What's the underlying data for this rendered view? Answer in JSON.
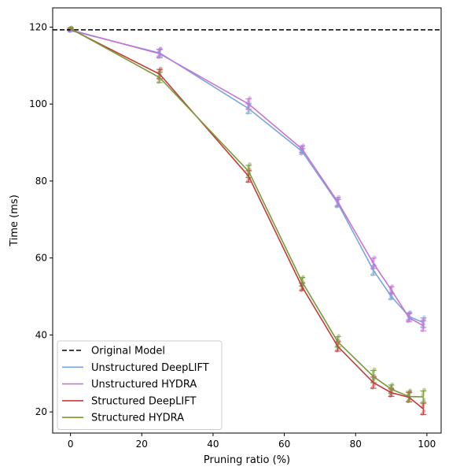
{
  "chart_data": {
    "type": "line",
    "title": "",
    "xlabel": "Pruning ratio (%)",
    "ylabel": "Time (ms)",
    "xlim": [
      -5,
      104
    ],
    "ylim": [
      14.5,
      125
    ],
    "xticks": [
      0,
      20,
      40,
      60,
      80,
      100
    ],
    "yticks": [
      20,
      40,
      60,
      80,
      100,
      120
    ],
    "grid": false,
    "legend_position": "lower-left",
    "reference_line": {
      "name": "Original Model",
      "value": 119.3,
      "color": "#000000",
      "style": "dashed"
    },
    "x": [
      0,
      25,
      50,
      65,
      75,
      85,
      90,
      95,
      99
    ],
    "series": [
      {
        "name": "Unstructured DeepLIFT",
        "color": "#7ba6db",
        "values": [
          119.1,
          113.3,
          98.8,
          87.7,
          74.2,
          56.8,
          50.0,
          44.8,
          43.2
        ]
      },
      {
        "name": "Unstructured HYDRA",
        "color": "#c474d6",
        "values": [
          119.3,
          113.1,
          100.0,
          88.3,
          74.6,
          58.6,
          51.7,
          44.5,
          42.4
        ]
      },
      {
        "name": "Structured DeepLIFT",
        "color": "#c23b3b",
        "values": [
          119.5,
          107.8,
          81.2,
          52.5,
          37.0,
          27.6,
          25.0,
          23.8,
          20.8
        ]
      },
      {
        "name": "Structured HYDRA",
        "color": "#7a9a3a",
        "values": [
          119.6,
          106.9,
          82.5,
          53.8,
          38.2,
          29.2,
          25.9,
          24.0,
          23.9
        ]
      }
    ]
  }
}
